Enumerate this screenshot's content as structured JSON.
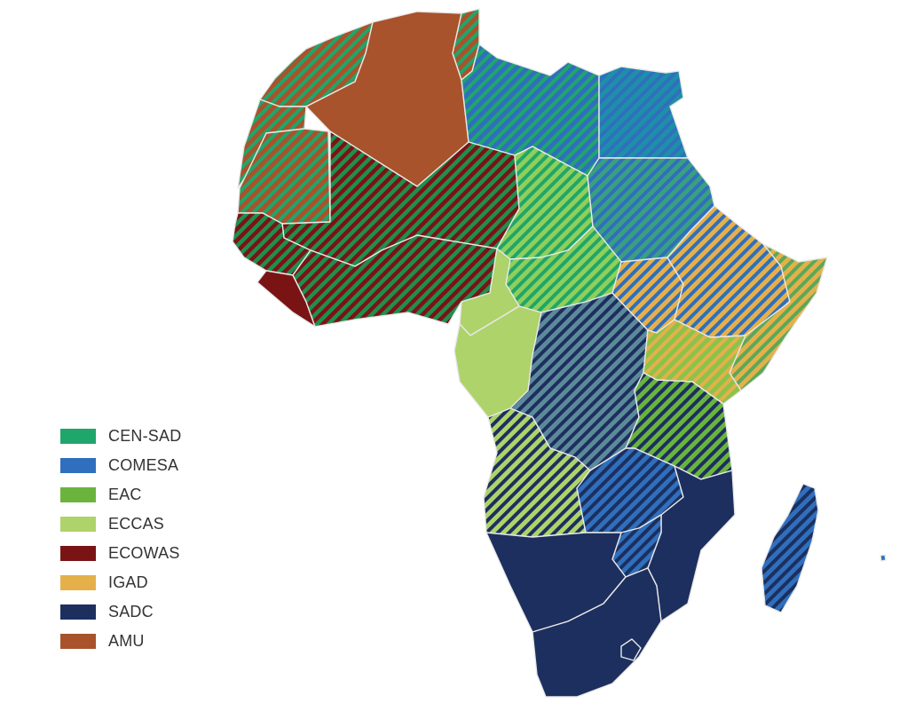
{
  "map": {
    "legend": [
      {
        "key": "cen-sad",
        "label": "CEN-SAD",
        "color": "#1fa66a"
      },
      {
        "key": "comesa",
        "label": "COMESA",
        "color": "#2f6fbd"
      },
      {
        "key": "eac",
        "label": "EAC",
        "color": "#6ab43e"
      },
      {
        "key": "eccas",
        "label": "ECCAS",
        "color": "#aed36a"
      },
      {
        "key": "ecowas",
        "label": "ECOWAS",
        "color": "#7a1414"
      },
      {
        "key": "igad",
        "label": "IGAD",
        "color": "#e5b04a"
      },
      {
        "key": "sadc",
        "label": "SADC",
        "color": "#1c2f5e"
      },
      {
        "key": "amu",
        "label": "AMU",
        "color": "#a8532c"
      }
    ]
  }
}
